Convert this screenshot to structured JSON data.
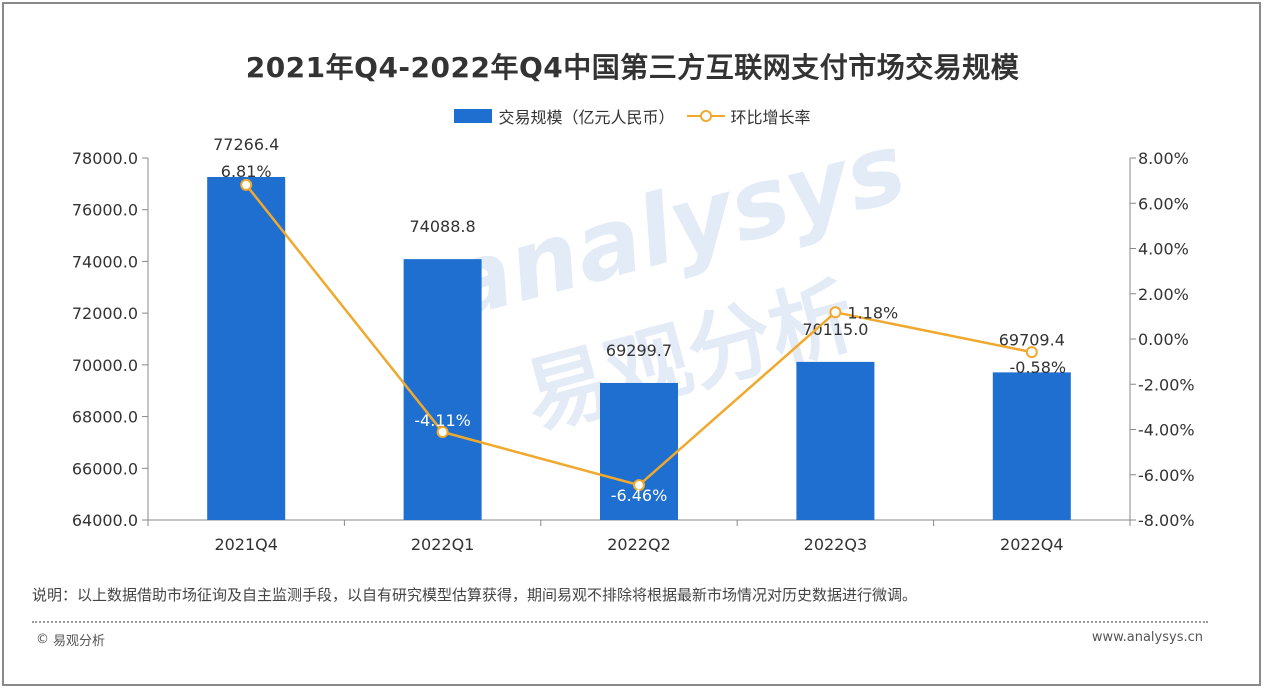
{
  "title": "2021年Q4-2022年Q4中国第三方互联网支付市场交易规模",
  "legend": {
    "bar_label": "交易规模（亿元人民币）",
    "line_label": "环比增长率"
  },
  "colors": {
    "bar": "#1f6fd0",
    "line": "#f0a92e",
    "axis": "#888888",
    "text": "#333333"
  },
  "chart_data": {
    "type": "bar",
    "categories": [
      "2021Q4",
      "2022Q1",
      "2022Q2",
      "2022Q3",
      "2022Q4"
    ],
    "series": [
      {
        "name": "交易规模（亿元人民币）",
        "type": "bar",
        "axis": "left",
        "values": [
          77266.4,
          74088.8,
          69299.7,
          70115.0,
          69709.4
        ],
        "labels": [
          "77266.4",
          "74088.8",
          "69299.7",
          "70115.0",
          "69709.4"
        ]
      },
      {
        "name": "环比增长率",
        "type": "line",
        "axis": "right",
        "values": [
          6.81,
          -4.11,
          -6.46,
          1.18,
          -0.58
        ],
        "labels": [
          "6.81%",
          "-4.11%",
          "-6.46%",
          "1.18%",
          "-0.58%"
        ]
      }
    ],
    "y_left": {
      "range": [
        64000,
        78000
      ],
      "ticks": [
        64000,
        66000,
        68000,
        70000,
        72000,
        74000,
        76000,
        78000
      ],
      "tick_labels": [
        "64000.0",
        "66000.0",
        "68000.0",
        "70000.0",
        "72000.0",
        "74000.0",
        "76000.0",
        "78000.0"
      ]
    },
    "y_right": {
      "range": [
        -8,
        8
      ],
      "ticks": [
        -8,
        -6,
        -4,
        -2,
        0,
        2,
        4,
        6,
        8
      ],
      "tick_labels": [
        "-8.00%",
        "-6.00%",
        "-4.00%",
        "-2.00%",
        "0.00%",
        "2.00%",
        "4.00%",
        "6.00%",
        "8.00%"
      ]
    },
    "grid": false,
    "legend_position": "top-center"
  },
  "note": "说明：以上数据借助市场征询及自主监测手段，以自有研究模型估算获得，期间易观不排除将根据最新市场情况对历史数据进行微调。",
  "footer": {
    "copyright_symbol": "©",
    "source": "易观分析",
    "url": "www.analysys.cn"
  },
  "watermark": {
    "en": "analysys",
    "cn": "易观分析"
  }
}
